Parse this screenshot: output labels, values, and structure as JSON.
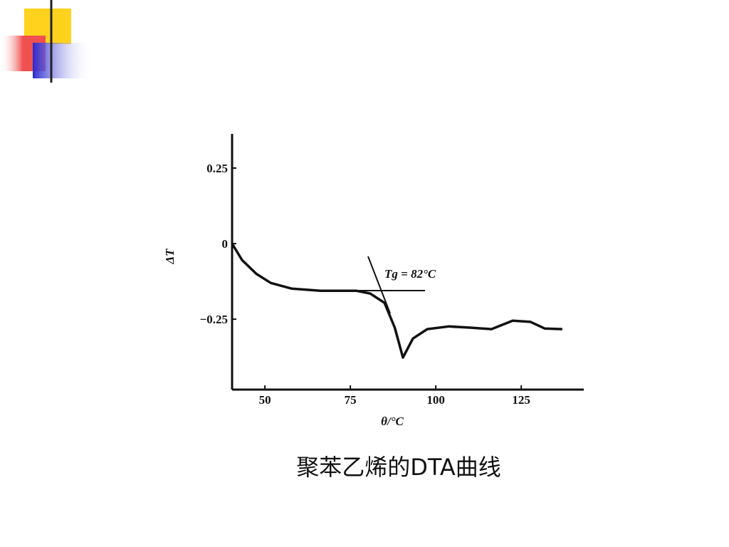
{
  "chart_data": {
    "type": "line",
    "caption": "聚苯乙烯的DTA曲线",
    "xlabel": "θ/°C",
    "ylabel": "ΔT",
    "annotation": "Tg = 82°C",
    "x": [
      40.4,
      43.3,
      47.5,
      51.7,
      57.9,
      66.3,
      76.7,
      80.8,
      85,
      88,
      90.4,
      93.3,
      97.5,
      103.8,
      110,
      116.3,
      122.5,
      127.7,
      131.9,
      137
    ],
    "series": [
      {
        "color": "#111111",
        "values": [
          0,
          -0.054,
          -0.1,
          -0.13,
          -0.149,
          -0.156,
          -0.156,
          -0.165,
          -0.196,
          -0.278,
          -0.377,
          -0.314,
          -0.283,
          -0.274,
          -0.278,
          -0.283,
          -0.255,
          -0.259,
          -0.281,
          -0.283
        ]
      }
    ],
    "xlim": [
      40.4,
      143.3
    ],
    "ylim": [
      -0.483,
      0.363
    ],
    "xticks": [
      50,
      75,
      100,
      125
    ],
    "yticks": [
      0.25,
      0,
      {
        "value": -0.25,
        "label": "−0.25"
      }
    ]
  }
}
